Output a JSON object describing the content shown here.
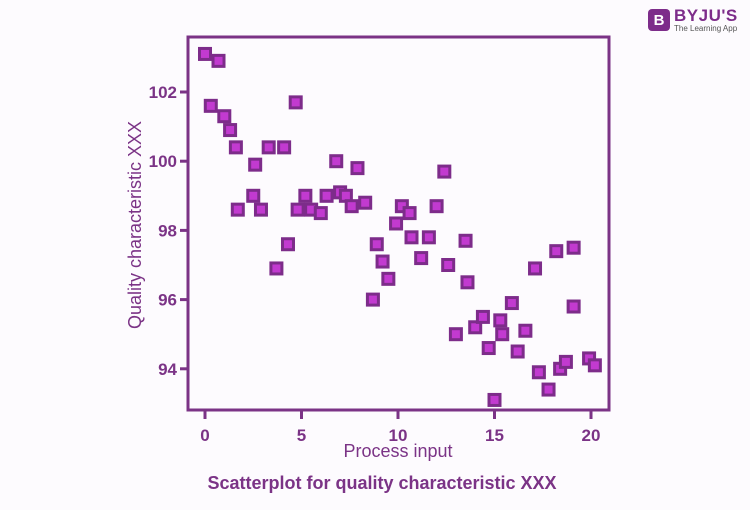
{
  "brand": {
    "name": "BYJU'S",
    "tagline": "The Learning App",
    "badge_letter": "B"
  },
  "colors": {
    "axis": "#7b3386",
    "marker_border": "#7d2c8a",
    "marker_fill": "#c23ad0",
    "background": "#fdfbfe"
  },
  "chart_data": {
    "type": "scatter",
    "title": "Scatterplot for quality characteristic XXX",
    "xlabel": "Process input",
    "ylabel": "Quality characteristic XXX",
    "xlim": [
      -0.6,
      21.0
    ],
    "ylim": [
      92.9,
      104.0
    ],
    "x_ticks": [
      0,
      5,
      10,
      15,
      20
    ],
    "y_ticks": [
      94,
      96,
      98,
      100,
      102
    ],
    "grid": false,
    "legend": null,
    "marker": "square",
    "points": [
      [
        0.0,
        103.1
      ],
      [
        0.7,
        102.9
      ],
      [
        0.3,
        101.6
      ],
      [
        1.0,
        101.3
      ],
      [
        1.3,
        100.9
      ],
      [
        1.6,
        100.4
      ],
      [
        1.7,
        98.6
      ],
      [
        2.5,
        99.0
      ],
      [
        2.6,
        99.9
      ],
      [
        2.9,
        98.6
      ],
      [
        3.3,
        100.4
      ],
      [
        3.7,
        96.9
      ],
      [
        4.1,
        100.4
      ],
      [
        4.3,
        97.6
      ],
      [
        4.7,
        101.7
      ],
      [
        4.8,
        98.6
      ],
      [
        5.2,
        99.0
      ],
      [
        5.5,
        98.6
      ],
      [
        6.0,
        98.5
      ],
      [
        6.3,
        99.0
      ],
      [
        6.8,
        100.0
      ],
      [
        7.0,
        99.1
      ],
      [
        7.3,
        99.0
      ],
      [
        7.6,
        98.7
      ],
      [
        7.9,
        99.8
      ],
      [
        8.3,
        98.8
      ],
      [
        8.7,
        96.0
      ],
      [
        8.9,
        97.6
      ],
      [
        9.2,
        97.1
      ],
      [
        9.5,
        96.6
      ],
      [
        9.9,
        98.2
      ],
      [
        10.2,
        98.7
      ],
      [
        10.6,
        98.5
      ],
      [
        10.7,
        97.8
      ],
      [
        11.2,
        97.2
      ],
      [
        11.6,
        97.8
      ],
      [
        12.0,
        98.7
      ],
      [
        12.4,
        99.7
      ],
      [
        12.6,
        97.0
      ],
      [
        13.0,
        95.0
      ],
      [
        13.5,
        97.7
      ],
      [
        13.6,
        96.5
      ],
      [
        14.0,
        95.2
      ],
      [
        14.4,
        95.5
      ],
      [
        14.7,
        94.6
      ],
      [
        15.0,
        93.1
      ],
      [
        15.3,
        95.4
      ],
      [
        15.4,
        95.0
      ],
      [
        15.9,
        95.9
      ],
      [
        16.2,
        94.5
      ],
      [
        16.6,
        95.1
      ],
      [
        17.1,
        96.9
      ],
      [
        17.3,
        93.9
      ],
      [
        17.8,
        93.4
      ],
      [
        18.2,
        97.4
      ],
      [
        18.4,
        94.0
      ],
      [
        18.7,
        94.2
      ],
      [
        19.1,
        97.5
      ],
      [
        19.1,
        95.8
      ],
      [
        19.9,
        94.3
      ],
      [
        20.2,
        94.1
      ]
    ]
  }
}
